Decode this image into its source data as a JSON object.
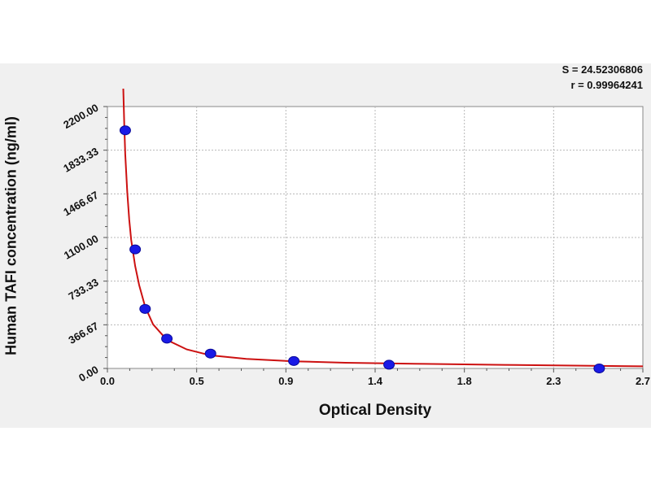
{
  "chart_data": {
    "type": "scatter",
    "title": "",
    "xlabel": "Optical Density",
    "ylabel": "Human TAFI concentration (ng/ml)",
    "xlim": [
      0.0,
      2.7
    ],
    "ylim": [
      0.0,
      2200.0
    ],
    "x_ticks": [
      "0.0",
      "0.5",
      "0.9",
      "1.4",
      "1.8",
      "2.3",
      "2.7"
    ],
    "y_ticks": [
      "0.00",
      "366.67",
      "733.33",
      "1100.00",
      "1466.67",
      "1833.33",
      "2200.00"
    ],
    "grid": true,
    "annotations": [
      "S = 24.52306806",
      "r = 0.99964241"
    ],
    "colors": {
      "points": "#1a1ae6",
      "curve": "#cc1111",
      "grid": "#b8b8b8",
      "panel": "#f0f0f0",
      "plot": "#ffffff"
    },
    "points": [
      {
        "x": 0.09,
        "y": 2000
      },
      {
        "x": 0.14,
        "y": 1000
      },
      {
        "x": 0.19,
        "y": 500
      },
      {
        "x": 0.3,
        "y": 250
      },
      {
        "x": 0.52,
        "y": 125
      },
      {
        "x": 0.94,
        "y": 62.5
      },
      {
        "x": 1.42,
        "y": 31.25
      },
      {
        "x": 2.48,
        "y": 0
      }
    ],
    "fit_curve": [
      {
        "x": 0.08,
        "y": 2350
      },
      {
        "x": 0.085,
        "y": 2050
      },
      {
        "x": 0.09,
        "y": 1800
      },
      {
        "x": 0.1,
        "y": 1480
      },
      {
        "x": 0.11,
        "y": 1250
      },
      {
        "x": 0.12,
        "y": 1080
      },
      {
        "x": 0.14,
        "y": 860
      },
      {
        "x": 0.16,
        "y": 700
      },
      {
        "x": 0.19,
        "y": 520
      },
      {
        "x": 0.23,
        "y": 370
      },
      {
        "x": 0.3,
        "y": 240
      },
      {
        "x": 0.4,
        "y": 160
      },
      {
        "x": 0.52,
        "y": 110
      },
      {
        "x": 0.7,
        "y": 80
      },
      {
        "x": 0.94,
        "y": 60
      },
      {
        "x": 1.2,
        "y": 48
      },
      {
        "x": 1.6,
        "y": 38
      },
      {
        "x": 2.0,
        "y": 30
      },
      {
        "x": 2.7,
        "y": 18
      }
    ]
  }
}
